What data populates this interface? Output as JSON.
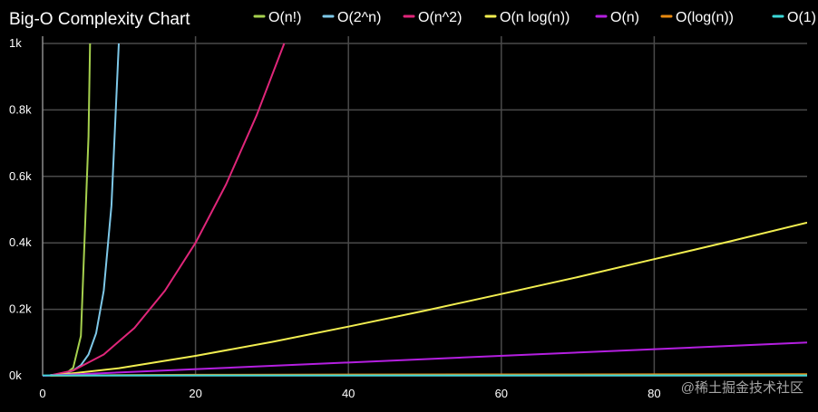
{
  "chart_data": {
    "type": "line",
    "title": "Big-O Complexity Chart",
    "xlabel": "",
    "ylabel": "",
    "xlim": [
      0,
      100
    ],
    "ylim": [
      0,
      1000
    ],
    "x_ticks": [
      0,
      20,
      40,
      60,
      80
    ],
    "x_tick_labels": [
      "0",
      "20",
      "40",
      "60",
      "80"
    ],
    "y_ticks": [
      0,
      200,
      400,
      600,
      800,
      1000
    ],
    "y_tick_labels": [
      "0k",
      "0.2k",
      "0.4k",
      "0.6k",
      "0.8k",
      "1k"
    ],
    "grid": true,
    "legend_position": "top",
    "series": [
      {
        "name": "O(n!)",
        "color": "#a6d14e",
        "x": [
          1,
          2,
          3,
          4,
          5,
          6,
          6.2
        ],
        "y": [
          1,
          2,
          6,
          24,
          120,
          720,
          1000
        ]
      },
      {
        "name": "O(2^n)",
        "color": "#7ec8e8",
        "x": [
          1,
          2,
          3,
          4,
          5,
          6,
          7,
          8,
          9,
          9.97
        ],
        "y": [
          2,
          4,
          8,
          16,
          32,
          64,
          128,
          256,
          512,
          1000
        ]
      },
      {
        "name": "O(n^2)",
        "color": "#e0267a",
        "x": [
          1,
          4,
          8,
          12,
          16,
          20,
          24,
          28,
          31.6
        ],
        "y": [
          1,
          16,
          64,
          144,
          256,
          400,
          576,
          784,
          1000
        ]
      },
      {
        "name": "O(n log(n))",
        "color": "#f2ee50",
        "x": [
          1,
          10,
          20,
          30,
          40,
          50,
          60,
          70,
          80,
          90,
          100
        ],
        "y": [
          0,
          23,
          60,
          102,
          148,
          196,
          246,
          297,
          351,
          405,
          461
        ]
      },
      {
        "name": "O(n)",
        "color": "#b41fe0",
        "x": [
          0,
          100
        ],
        "y": [
          0,
          100
        ]
      },
      {
        "name": "O(log(n))",
        "color": "#e88a10",
        "x": [
          1,
          10,
          20,
          40,
          60,
          80,
          100
        ],
        "y": [
          0,
          2.3,
          3,
          3.7,
          4.1,
          4.4,
          4.6
        ]
      },
      {
        "name": "O(1)",
        "color": "#3bd8d8",
        "x": [
          0,
          100
        ],
        "y": [
          1,
          1
        ]
      }
    ]
  },
  "watermark": "@稀土掘金技术社区"
}
